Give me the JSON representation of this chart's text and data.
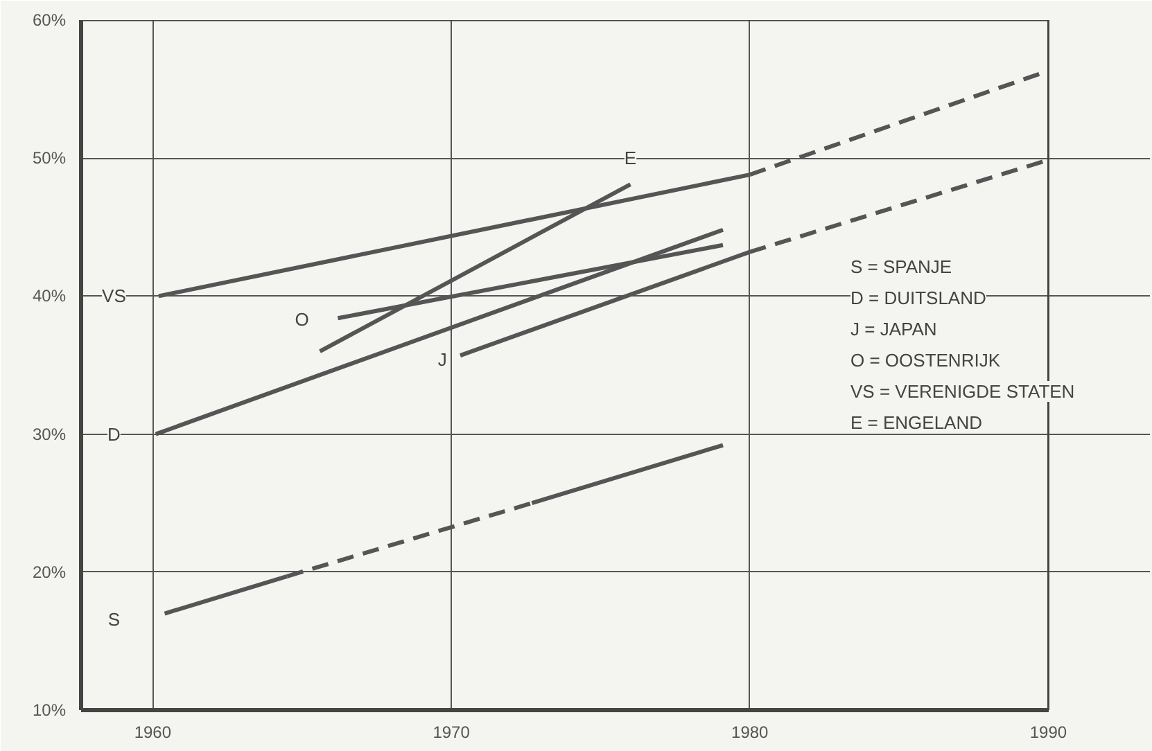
{
  "chart_data": {
    "type": "line",
    "xlim": [
      1957.6,
      1990
    ],
    "xticks": [
      1960,
      1970,
      1980,
      1990
    ],
    "ylim": [
      10,
      60
    ],
    "yticks": [
      {
        "value": 10,
        "label": "10%"
      },
      {
        "value": 20,
        "label": "20%"
      },
      {
        "value": 30,
        "label": "30%"
      },
      {
        "value": 40,
        "label": "40%"
      },
      {
        "value": 50,
        "label": "50%"
      },
      {
        "value": 60,
        "label": "60%"
      }
    ],
    "grid": true,
    "series": [
      {
        "color": "#555555",
        "line_style": "solid",
        "x": [
          1960.2,
          1980
        ],
        "values": [
          40.0,
          48.8
        ]
      },
      {
        "color": "#555555",
        "line_style": "dashed",
        "x": [
          1980,
          1989.7
        ],
        "values": [
          48.8,
          56.1
        ]
      },
      {
        "color": "#555555",
        "line_style": "solid",
        "x": [
          1965.6,
          1976.0
        ],
        "values": [
          36.0,
          48.1
        ]
      },
      {
        "color": "#555555",
        "line_style": "solid",
        "x": [
          1966.2,
          1979.1
        ],
        "values": [
          38.4,
          43.7
        ]
      },
      {
        "color": "#555555",
        "line_style": "solid",
        "x": [
          1960.1,
          1979.1
        ],
        "values": [
          30.0,
          44.8
        ]
      },
      {
        "color": "#555555",
        "line_style": "solid",
        "x": [
          1970.3,
          1980
        ],
        "values": [
          35.7,
          43.2
        ]
      },
      {
        "color": "#555555",
        "line_style": "dashed",
        "x": [
          1980,
          1989.9
        ],
        "values": [
          43.2,
          49.8
        ]
      },
      {
        "color": "#555555",
        "line_style": "solid",
        "x": [
          1960.4,
          1964.5
        ],
        "values": [
          17.0,
          19.7
        ]
      },
      {
        "color": "#555555",
        "line_style": "dashed",
        "x": [
          1964.5,
          1972.7
        ],
        "values": [
          19.7,
          25.0
        ]
      },
      {
        "color": "#555555",
        "line_style": "solid",
        "x": [
          1972.7,
          1979.1
        ],
        "values": [
          25.0,
          29.2
        ]
      }
    ],
    "annotations": [
      {
        "text": "VS",
        "x": 1958.7,
        "y": 40
      },
      {
        "text": "D",
        "x": 1958.7,
        "y": 30
      },
      {
        "text": "S",
        "x": 1958.7,
        "y": 16.6
      },
      {
        "text": "O",
        "x": 1965.0,
        "y": 38.3
      },
      {
        "text": "J",
        "x": 1969.7,
        "y": 35.4
      },
      {
        "text": "E",
        "x": 1976.0,
        "y": 50.0
      },
      "S = SPANJE",
      "D = DUITSLAND",
      "J = JAPAN",
      "O = OOSTENRIJK",
      "VS = VERENIGDE STATEN",
      "E = ENGELAND"
    ]
  }
}
